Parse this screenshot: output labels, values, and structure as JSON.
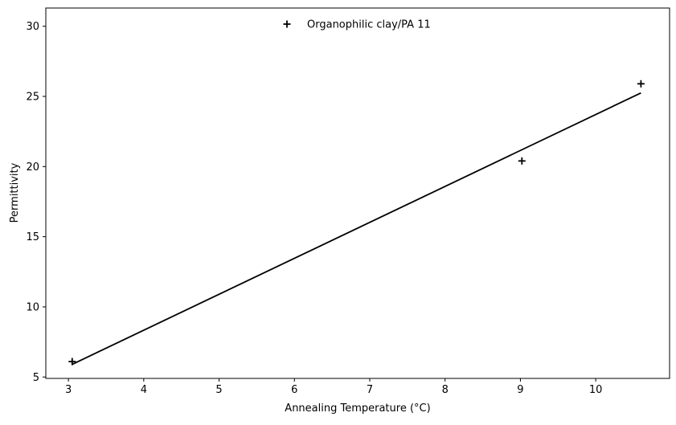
{
  "chart_data": {
    "type": "scatter",
    "title": "",
    "xlabel": "Annealing Temperature (°C)",
    "ylabel": "Permittivity",
    "xlim": [
      2.7,
      10.98
    ],
    "ylim": [
      4.9,
      31.3
    ],
    "xticks": [
      3,
      4,
      5,
      6,
      7,
      8,
      9,
      10
    ],
    "yticks": [
      5,
      10,
      15,
      20,
      25,
      30
    ],
    "grid": false,
    "legend_position": "top-center",
    "series": [
      {
        "name": "Organophilic clay/PA 11",
        "marker": "plus",
        "color": "#000000",
        "points": [
          {
            "x": 3.05,
            "y": 6.1
          },
          {
            "x": 9.02,
            "y": 20.4
          },
          {
            "x": 10.6,
            "y": 25.9
          }
        ]
      }
    ],
    "fit_line": {
      "color": "#000000",
      "x": [
        3.05,
        10.6
      ],
      "y": [
        5.9,
        25.25
      ]
    }
  }
}
